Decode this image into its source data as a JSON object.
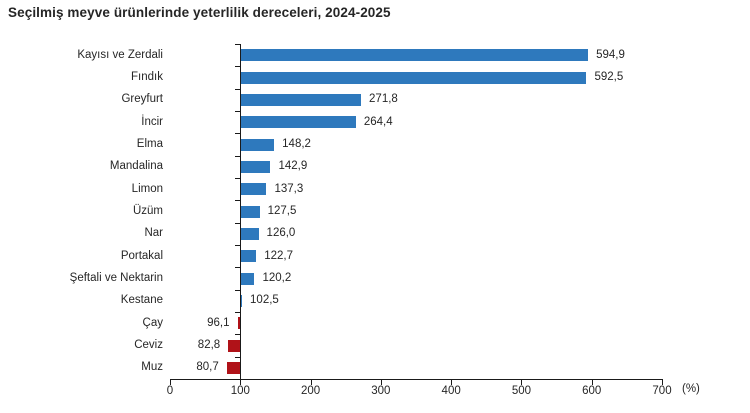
{
  "title": "Seçilmiş meyve ürünlerinde yeterlilik dereceleri, 2024-2025",
  "chart_data": {
    "type": "bar",
    "orientation": "horizontal",
    "title": "Seçilmiş meyve ürünlerinde yeterlilik dereceleri, 2024-2025",
    "xlabel": "(%)",
    "ylabel": "",
    "xlim": [
      0,
      700
    ],
    "x_ticks": [
      0,
      100,
      200,
      300,
      400,
      500,
      600,
      700
    ],
    "baseline": 100,
    "grid": false,
    "decimal_separator": ",",
    "categories": [
      "Kayısı ve Zerdali",
      "Fındık",
      "Greyfurt",
      "İncir",
      "Elma",
      "Mandalina",
      "Limon",
      "Üzüm",
      "Nar",
      "Portakal",
      "Şeftali ve Nektarin",
      "Kestane",
      "Çay",
      "Ceviz",
      "Muz"
    ],
    "values": [
      594.9,
      592.5,
      271.8,
      264.4,
      148.2,
      142.9,
      137.3,
      127.5,
      126.0,
      122.7,
      120.2,
      102.5,
      96.1,
      82.8,
      80.7
    ],
    "colors": {
      "above_baseline": "#2E79BD",
      "below_baseline": "#B01218"
    }
  }
}
